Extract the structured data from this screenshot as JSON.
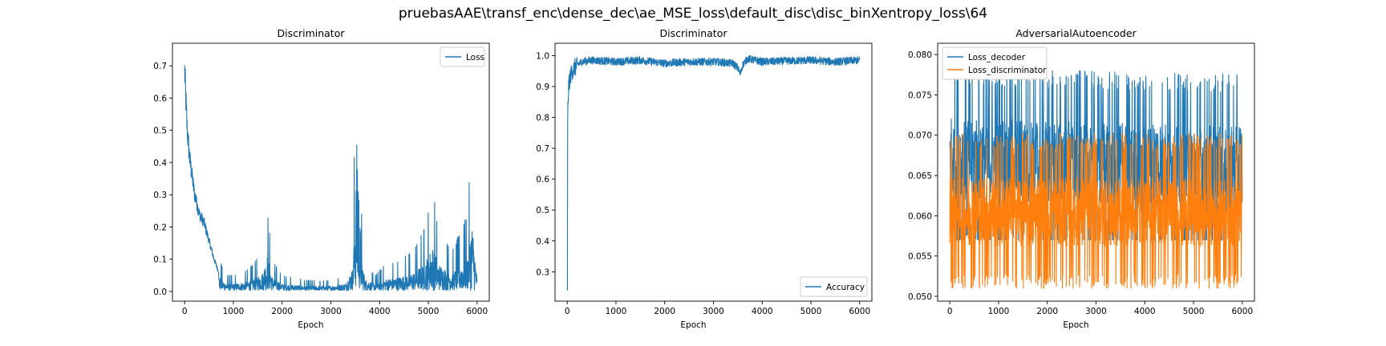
{
  "figure": {
    "suptitle": "pruebasAAE\\transf_enc\\dense_dec\\ae_MSE_loss\\default_disc\\disc_binXentropy_loss\\64",
    "colors": {
      "blue": "#1f77b4",
      "orange": "#ff7f0e"
    }
  },
  "chart_data": [
    {
      "type": "line",
      "title": "Discriminator",
      "xlabel": "Epoch",
      "ylabel": "",
      "xlim": [
        -250,
        6250
      ],
      "ylim": [
        -0.03,
        0.77
      ],
      "xticks": [
        0,
        1000,
        2000,
        3000,
        4000,
        5000,
        6000
      ],
      "yticks": [
        0.0,
        0.1,
        0.2,
        0.3,
        0.4,
        0.5,
        0.6,
        0.7
      ],
      "ytick_labels": [
        "0.0",
        "0.1",
        "0.2",
        "0.3",
        "0.4",
        "0.5",
        "0.6",
        "0.7"
      ],
      "grid": false,
      "legend": "upper right",
      "series": [
        {
          "name": "Loss",
          "color": "#1f77b4",
          "x": [
            0,
            50,
            100,
            200,
            300,
            400,
            500,
            600,
            700,
            800,
            900,
            1000,
            1200,
            1400,
            1600,
            1700,
            1800,
            2000,
            2500,
            3000,
            3300,
            3450,
            3520,
            3560,
            3600,
            3700,
            3900,
            4100,
            4400,
            4700,
            4900,
            5100,
            5200,
            5500,
            5800,
            5900,
            6000
          ],
          "y": [
            0.74,
            0.55,
            0.45,
            0.33,
            0.26,
            0.23,
            0.17,
            0.11,
            0.065,
            0.04,
            0.03,
            0.03,
            0.035,
            0.05,
            0.08,
            0.16,
            0.06,
            0.03,
            0.02,
            0.02,
            0.03,
            0.1,
            0.5,
            0.35,
            0.2,
            0.05,
            0.03,
            0.05,
            0.06,
            0.08,
            0.12,
            0.2,
            0.12,
            0.08,
            0.15,
            0.31,
            0.05
          ]
        }
      ]
    },
    {
      "type": "line",
      "title": "Discriminator",
      "xlabel": "Epoch",
      "ylabel": "",
      "xlim": [
        -250,
        6250
      ],
      "ylim": [
        0.205,
        1.04
      ],
      "xticks": [
        0,
        1000,
        2000,
        3000,
        4000,
        5000,
        6000
      ],
      "yticks": [
        0.3,
        0.4,
        0.5,
        0.6,
        0.7,
        0.8,
        0.9,
        1.0
      ],
      "ytick_labels": [
        "0.3",
        "0.4",
        "0.5",
        "0.6",
        "0.7",
        "0.8",
        "0.9",
        "1.0"
      ],
      "grid": false,
      "legend": "lower right",
      "series": [
        {
          "name": "Accuracy",
          "color": "#1f77b4",
          "x": [
            0,
            10,
            30,
            60,
            100,
            150,
            200,
            300,
            500,
            1000,
            1500,
            2000,
            2500,
            3000,
            3400,
            3500,
            3550,
            3600,
            3700,
            4000,
            5000,
            5500,
            6000
          ],
          "y": [
            0.24,
            0.82,
            0.9,
            0.93,
            0.95,
            0.96,
            0.97,
            0.98,
            0.985,
            0.98,
            0.985,
            0.975,
            0.98,
            0.98,
            0.975,
            0.96,
            0.94,
            0.97,
            0.99,
            0.98,
            0.985,
            0.98,
            0.985
          ]
        }
      ]
    },
    {
      "type": "line",
      "title": "AdversarialAutoencoder",
      "xlabel": "Epoch",
      "ylabel": "",
      "xlim": [
        -250,
        6250
      ],
      "ylim": [
        0.0494,
        0.0814
      ],
      "xticks": [
        0,
        1000,
        2000,
        3000,
        4000,
        5000,
        6000
      ],
      "yticks": [
        0.05,
        0.055,
        0.06,
        0.065,
        0.07,
        0.075,
        0.08
      ],
      "ytick_labels": [
        "0.050",
        "0.055",
        "0.060",
        "0.065",
        "0.070",
        "0.075",
        "0.080"
      ],
      "grid": false,
      "legend": "upper left",
      "series": [
        {
          "name": "Loss_decoder",
          "color": "#1f77b4",
          "x": [
            0,
            3000,
            6000
          ],
          "y": [
            0.067,
            0.0665,
            0.066
          ],
          "band": [
            0.057,
            0.08
          ]
        },
        {
          "name": "Loss_discriminator",
          "color": "#ff7f0e",
          "x": [
            0,
            3000,
            6000
          ],
          "y": [
            0.0605,
            0.0605,
            0.0605
          ],
          "band": [
            0.051,
            0.0705
          ]
        }
      ]
    }
  ]
}
